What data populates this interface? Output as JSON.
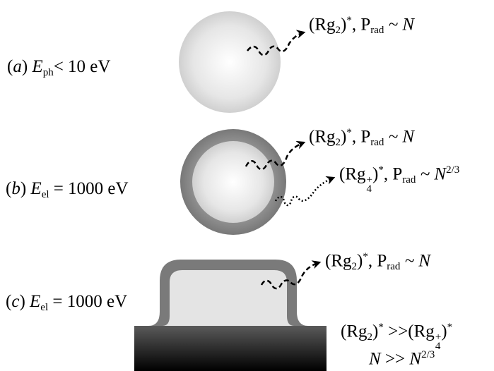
{
  "panels": {
    "a": {
      "letter": "a",
      "energy_symbol": "E",
      "energy_sub": "ph",
      "energy_relation": "< 10 eV",
      "emission": {
        "species": "Rg",
        "species_sub": "2",
        "star": "*",
        "p": "P",
        "p_sub": "rad",
        "scaling": "~ N"
      }
    },
    "b": {
      "letter": "b",
      "energy_symbol": "E",
      "energy_sub": "el",
      "energy_relation": "= 1000 eV",
      "emission_1": {
        "species": "Rg",
        "species_sub": "2",
        "star": "*",
        "p": "P",
        "p_sub": "rad",
        "scaling": "~ N"
      },
      "emission_2": {
        "species": "Rg",
        "species_sub": "4",
        "species_sup": "+",
        "star": "*",
        "p": "P",
        "p_sub": "rad",
        "scaling": "~ N",
        "scaling_exp": "2/3"
      }
    },
    "c": {
      "letter": "c",
      "energy_symbol": "E",
      "energy_sub": "el",
      "energy_relation": "= 1000 eV",
      "emission": {
        "species": "Rg",
        "species_sub": "2",
        "star": "*",
        "p": "P",
        "p_sub": "rad",
        "scaling": "~ N"
      }
    }
  },
  "comparison": {
    "left_species": "Rg",
    "left_sub": "2",
    "left_star": "*",
    "relation": ">>",
    "right_species": "Rg",
    "right_sub": "4",
    "right_sup": "+",
    "right_star": "*",
    "n_left": "N",
    "n_relation": ">>",
    "n_right": "N",
    "n_right_exp": "2/3"
  },
  "colors": {
    "sphere_light": "#ffffff",
    "sphere_mid": "#e6e6e6",
    "sphere_edge": "#c8c8c8",
    "shell_dark": "#6e6e6e",
    "shell_light": "#9a9a9a",
    "film_fill": "#e4e4e4",
    "film_edge": "#7a7a7a",
    "substrate_top": "#5a5a5a",
    "substrate_bottom": "#000000"
  }
}
